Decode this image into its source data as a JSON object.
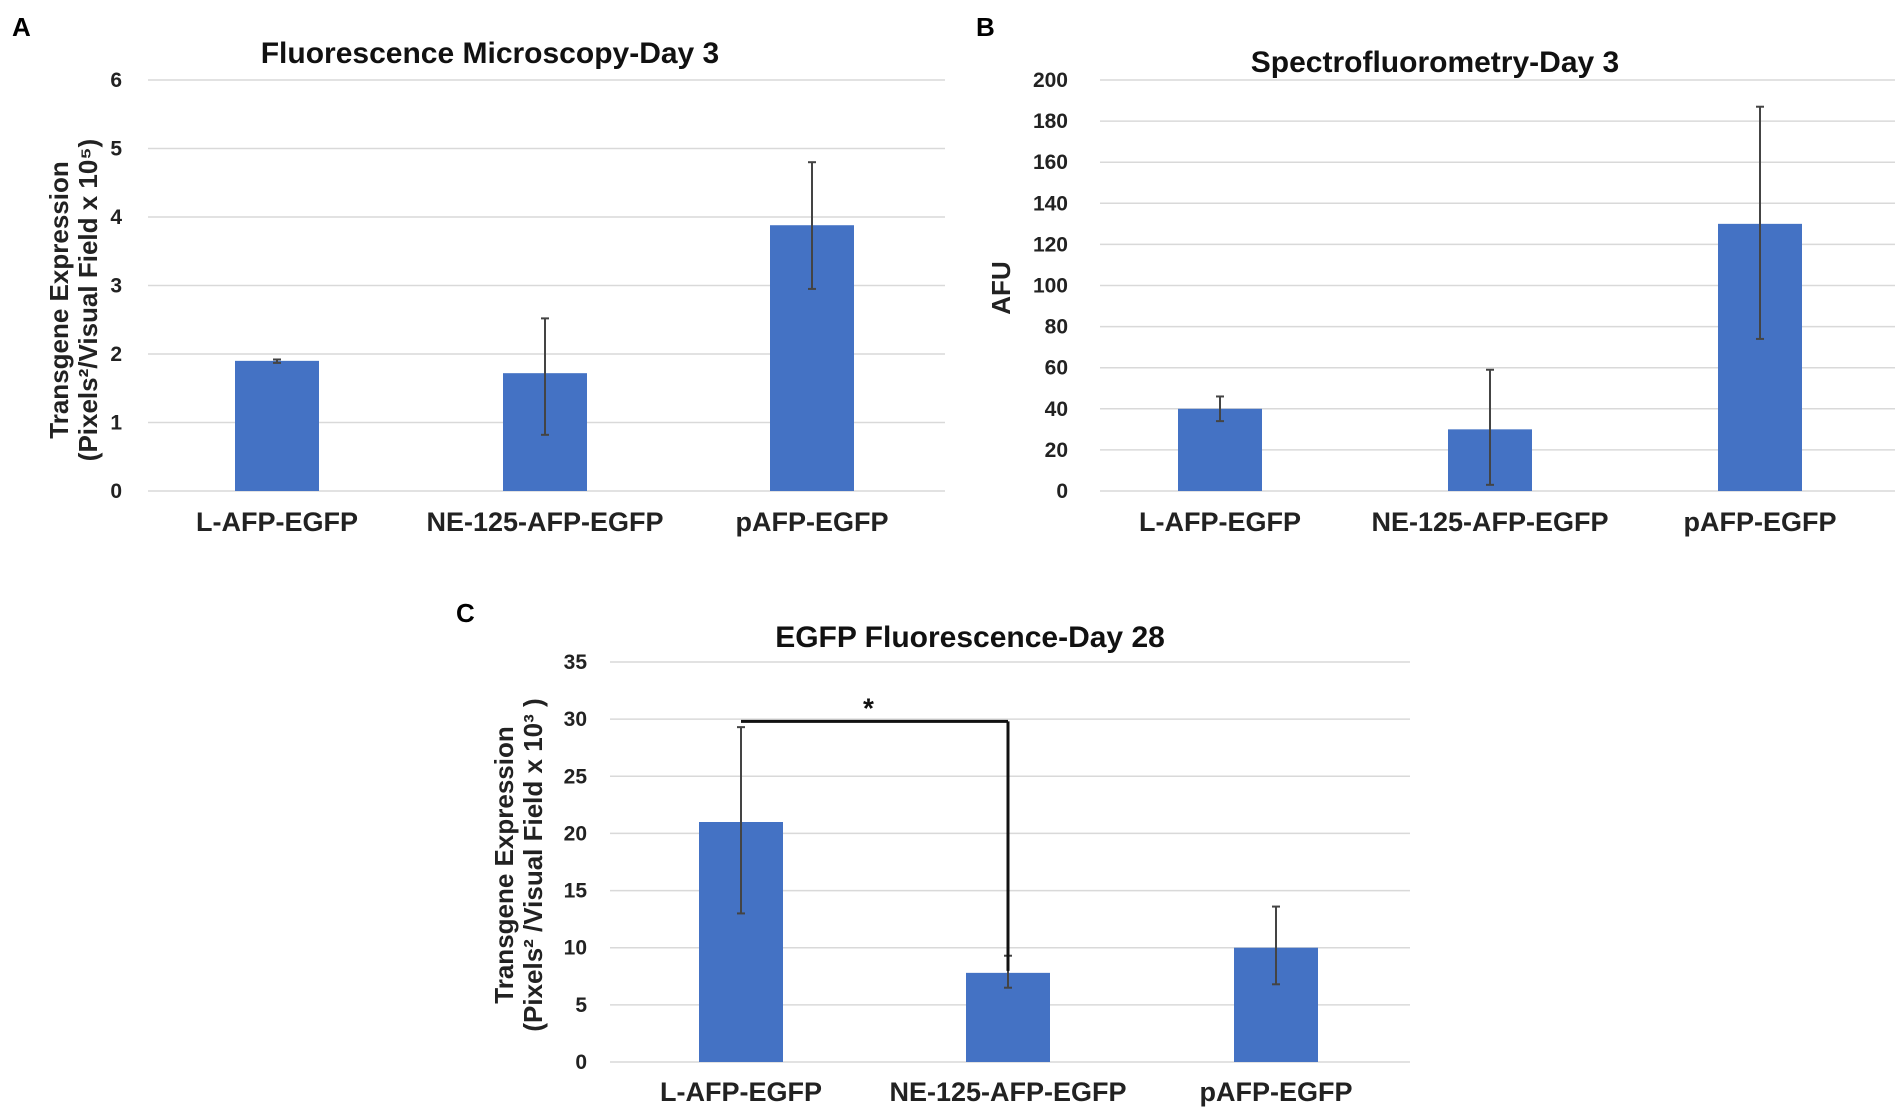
{
  "panel_letters": [
    "A",
    "B",
    "C"
  ],
  "chart_data": [
    {
      "type": "bar",
      "panel": "A",
      "title": "Fluorescence Microscopy-Day 3",
      "ylabel_line1": "Transgene Expression",
      "ylabel_line2": "(Pixels²/Visual Field x 10⁵)",
      "categories": [
        "L-AFP-EGFP",
        "NE-125-AFP-EGFP",
        "pAFP-EGFP"
      ],
      "values": [
        1.9,
        1.72,
        3.88
      ],
      "error_low": [
        1.87,
        0.82,
        2.95
      ],
      "error_high": [
        1.92,
        2.52,
        4.8
      ],
      "ylim": [
        0,
        6
      ],
      "yticks": [
        0,
        1,
        2,
        3,
        4,
        5,
        6
      ],
      "bar_color": "#4472c4",
      "grid": true
    },
    {
      "type": "bar",
      "panel": "B",
      "title": "Spectrofluorometry-Day 3",
      "ylabel": "AFU",
      "categories": [
        "L-AFP-EGFP",
        "NE-125-AFP-EGFP",
        "pAFP-EGFP"
      ],
      "values": [
        40,
        30,
        130
      ],
      "error_low": [
        34,
        3,
        74
      ],
      "error_high": [
        46,
        59,
        187
      ],
      "ylim": [
        0,
        200
      ],
      "yticks": [
        0,
        20,
        40,
        60,
        80,
        100,
        120,
        140,
        160,
        180,
        200
      ],
      "bar_color": "#4472c4",
      "grid": true
    },
    {
      "type": "bar",
      "panel": "C",
      "title": "EGFP Fluorescence-Day 28",
      "ylabel_line1": "Transgene Expression",
      "ylabel_line2": "(Pixels² /Visual Field x 10³ )",
      "categories": [
        "L-AFP-EGFP",
        "NE-125-AFP-EGFP",
        "pAFP-EGFP"
      ],
      "values": [
        21,
        7.8,
        10
      ],
      "error_low": [
        13,
        6.5,
        6.8
      ],
      "error_high": [
        29.3,
        9.3,
        13.6
      ],
      "ylim": [
        0,
        35
      ],
      "yticks": [
        0,
        5,
        10,
        15,
        20,
        25,
        30,
        35
      ],
      "bar_color": "#4472c4",
      "grid": true,
      "significance": {
        "from": 0,
        "to": 1,
        "level": 29.8,
        "label": "*"
      }
    }
  ]
}
